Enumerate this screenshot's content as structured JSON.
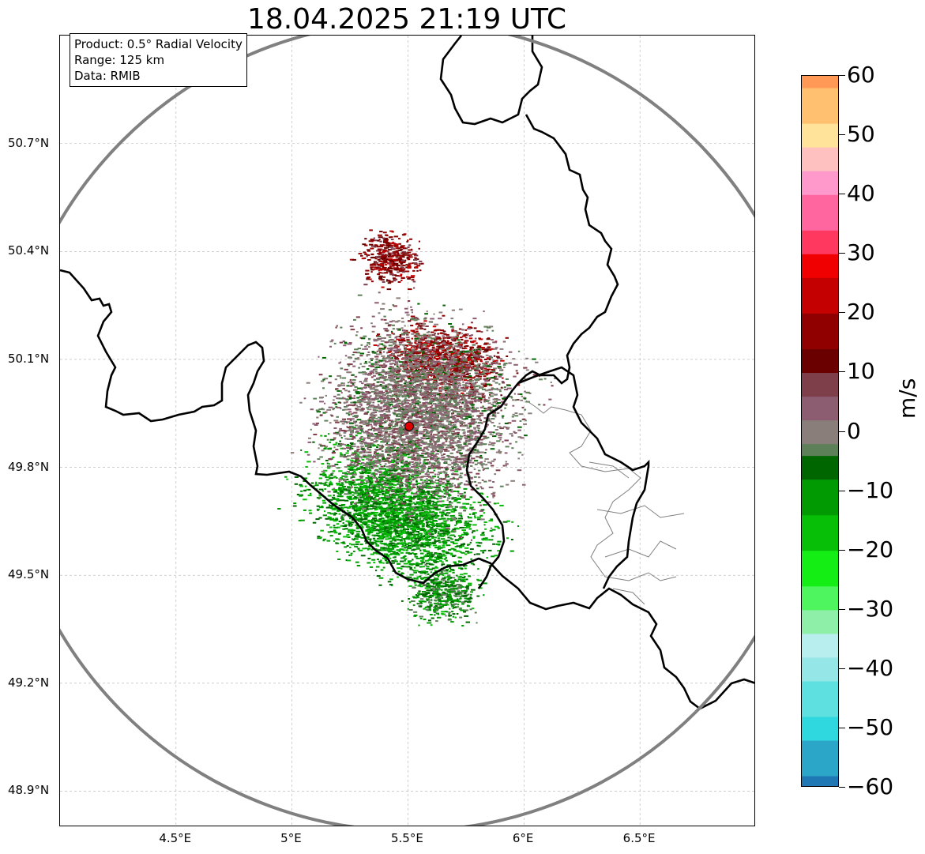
{
  "title": "18.04.2025 21:19 UTC",
  "info": {
    "product": "Product: 0.5° Radial Velocity",
    "range": "Range: 125 km",
    "source": "Data: RMIB"
  },
  "axes": {
    "lat_ticks": [
      "50.7°N",
      "50.4°N",
      "50.1°N",
      "49.8°N",
      "49.5°N",
      "49.2°N",
      "48.9°N"
    ],
    "lon_ticks": [
      "4.5°E",
      "5°E",
      "5.5°E",
      "6°E",
      "6.5°E"
    ],
    "lon_range": [
      4.0,
      7.0
    ],
    "lat_range": [
      48.8,
      51.0
    ]
  },
  "radar": {
    "lon": 5.505,
    "lat": 49.914,
    "range_km": 125
  },
  "colorbar": {
    "label": "m/s",
    "vmin": -60,
    "vmax": 60,
    "tick_labels": [
      "60",
      "50",
      "40",
      "30",
      "20",
      "10",
      "0",
      "−10",
      "−20",
      "−30",
      "−40",
      "−50",
      "−60"
    ],
    "stops": [
      {
        "v": -60,
        "c": "#1f77b4"
      },
      {
        "v": -55,
        "c": "#2ca6c8"
      },
      {
        "v": -50,
        "c": "#2ed8de"
      },
      {
        "v": -45,
        "c": "#5fe0e0"
      },
      {
        "v": -40,
        "c": "#95e6e6"
      },
      {
        "v": -35,
        "c": "#b8eeee"
      },
      {
        "v": -32,
        "c": "#8ef0a8"
      },
      {
        "v": -28,
        "c": "#4ef55e"
      },
      {
        "v": -24,
        "c": "#14ee14"
      },
      {
        "v": -18,
        "c": "#07bf07"
      },
      {
        "v": -12,
        "c": "#029a02"
      },
      {
        "v": -6,
        "c": "#006600"
      },
      {
        "v": -4,
        "c": "#5e8058"
      },
      {
        "v": 0,
        "c": "#8a7e7a"
      },
      {
        "v": 4,
        "c": "#8c5c70"
      },
      {
        "v": 8,
        "c": "#7e3e4a"
      },
      {
        "v": 10,
        "c": "#6a0000"
      },
      {
        "v": 16,
        "c": "#900000"
      },
      {
        "v": 22,
        "c": "#c40000"
      },
      {
        "v": 28,
        "c": "#f00000"
      },
      {
        "v": 30,
        "c": "#ff3860"
      },
      {
        "v": 36,
        "c": "#ff66a0"
      },
      {
        "v": 42,
        "c": "#ff99cc"
      },
      {
        "v": 46,
        "c": "#ffc0c0"
      },
      {
        "v": 50,
        "c": "#ffe39a"
      },
      {
        "v": 55,
        "c": "#ffc070"
      },
      {
        "v": 60,
        "c": "#ff9955"
      }
    ]
  },
  "colors": {
    "range_ring": "#808080",
    "border": "#000000",
    "admin": "#808080",
    "grid": "#b0b0b0",
    "radar_site": "#e00000"
  },
  "echo_regions": [
    {
      "name": "approaching",
      "lon": 5.45,
      "lat": 49.67,
      "rx_deg": 0.55,
      "ry_deg": 0.22,
      "rot": 28,
      "v": -12
    },
    {
      "name": "approaching-south",
      "lon": 5.65,
      "lat": 49.45,
      "rx_deg": 0.2,
      "ry_deg": 0.1,
      "rot": 0,
      "v": -9
    },
    {
      "name": "receding",
      "lon": 5.65,
      "lat": 50.1,
      "rx_deg": 0.35,
      "ry_deg": 0.13,
      "rot": 10,
      "v": 15
    },
    {
      "name": "receding-north",
      "lon": 5.42,
      "lat": 50.38,
      "rx_deg": 0.18,
      "ry_deg": 0.1,
      "rot": 0,
      "v": 14
    },
    {
      "name": "near-zero",
      "lon": 5.55,
      "lat": 49.95,
      "rx_deg": 0.55,
      "ry_deg": 0.35,
      "rot": 20,
      "v": 1
    }
  ]
}
